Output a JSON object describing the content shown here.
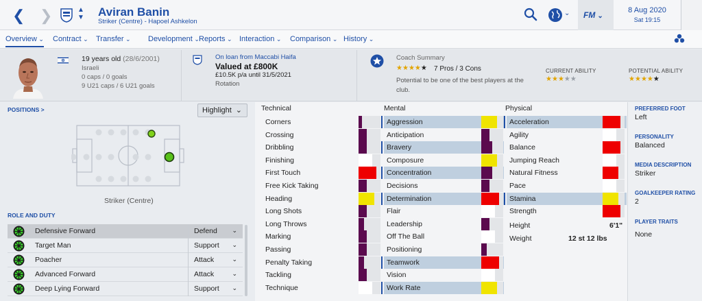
{
  "header": {
    "player_name": "Aviran Banin",
    "player_sub": "Striker (Centre) - Hapoel Ashkelon",
    "fm_label": "FM",
    "date": "8 Aug 2020",
    "time": "Sat 19:15"
  },
  "menu": [
    {
      "label": "Overview",
      "active": true
    },
    {
      "label": "Contract"
    },
    {
      "label": "Transfer"
    },
    {
      "label": "Development"
    },
    {
      "label": "Reports"
    },
    {
      "label": "Interaction"
    },
    {
      "label": "Comparison"
    },
    {
      "label": "History"
    }
  ],
  "bio": {
    "age": "19 years old",
    "dob": "(28/6/2001)",
    "nationality": "Israeli",
    "caps": "0 caps / 0 goals",
    "u21": "9 U21 caps / 6 U21 goals"
  },
  "contract": {
    "loan_link": "On loan from Maccabi Haifa",
    "value": "Valued at £800K",
    "wage": "£10.5K p/a until 31/5/2021",
    "status": "Rotation"
  },
  "coach": {
    "title": "Coach Summary",
    "stars": 4,
    "pros_cons": "7 Pros / 3 Cons",
    "text": "Potential to be one of the best players at the club.",
    "current_label": "CURRENT ABILITY",
    "current_stars": 3,
    "potential_label": "POTENTIAL ABILITY",
    "potential_stars": 4
  },
  "positions": {
    "title": "POSITIONS >",
    "highlight": "Highlight",
    "position_name": "Striker (Centre)"
  },
  "roles": {
    "title": "ROLE AND DUTY",
    "items": [
      {
        "name": "Defensive Forward",
        "duty": "Defend",
        "selected": true
      },
      {
        "name": "Target Man",
        "duty": "Support"
      },
      {
        "name": "Poacher",
        "duty": "Attack"
      },
      {
        "name": "Advanced Forward",
        "duty": "Attack"
      },
      {
        "name": "Deep Lying Forward",
        "duty": "Support"
      }
    ]
  },
  "attributes": {
    "technical_title": "Technical",
    "mental_title": "Mental",
    "physical_title": "Physical",
    "technical": [
      {
        "name": "Corners",
        "value": 4,
        "color": "#5b0a4e"
      },
      {
        "name": "Crossing",
        "value": 9,
        "color": "#5b0a4e"
      },
      {
        "name": "Dribbling",
        "value": 9,
        "color": "#5b0a4e"
      },
      {
        "name": "Finishing",
        "value": 15,
        "color": "#ffffff"
      },
      {
        "name": "First Touch",
        "value": 20,
        "color": "#ee0000"
      },
      {
        "name": "Free Kick Taking",
        "value": 9,
        "color": "#5b0a4e"
      },
      {
        "name": "Heading",
        "value": 18,
        "color": "#f0e400"
      },
      {
        "name": "Long Shots",
        "value": 9,
        "color": "#5b0a4e"
      },
      {
        "name": "Long Throws",
        "value": 6,
        "color": "#5b0a4e"
      },
      {
        "name": "Marking",
        "value": 9,
        "color": "#5b0a4e"
      },
      {
        "name": "Passing",
        "value": 9,
        "color": "#5b0a4e"
      },
      {
        "name": "Penalty Taking",
        "value": 6,
        "color": "#5b0a4e"
      },
      {
        "name": "Tackling",
        "value": 9,
        "color": "#5b0a4e"
      },
      {
        "name": "Technique",
        "value": 15,
        "color": "#ffffff"
      }
    ],
    "mental": [
      {
        "name": "Aggression",
        "value": 18,
        "color": "#f0e400"
      },
      {
        "name": "Anticipation",
        "value": 9,
        "color": "#5b0a4e"
      },
      {
        "name": "Bravery",
        "value": 12,
        "color": "#5b0a4e"
      },
      {
        "name": "Composure",
        "value": 18,
        "color": "#f0e400"
      },
      {
        "name": "Concentration",
        "value": 12,
        "color": "#5b0a4e"
      },
      {
        "name": "Decisions",
        "value": 9,
        "color": "#5b0a4e"
      },
      {
        "name": "Determination",
        "value": 20,
        "color": "#ee0000"
      },
      {
        "name": "Flair",
        "value": 15,
        "color": "#ffffff"
      },
      {
        "name": "Leadership",
        "value": 9,
        "color": "#5b0a4e"
      },
      {
        "name": "Off The Ball",
        "value": 15,
        "color": "#ffffff"
      },
      {
        "name": "Positioning",
        "value": 6,
        "color": "#5b0a4e"
      },
      {
        "name": "Teamwork",
        "value": 20,
        "color": "#ee0000"
      },
      {
        "name": "Vision",
        "value": 15,
        "color": "#ffffff"
      },
      {
        "name": "Work Rate",
        "value": 18,
        "color": "#f0e400"
      }
    ],
    "physical": [
      {
        "name": "Acceleration",
        "value": 20,
        "color": "#ee0000"
      },
      {
        "name": "Agility",
        "value": 15,
        "color": "#ffffff"
      },
      {
        "name": "Balance",
        "value": 20,
        "color": "#ee0000"
      },
      {
        "name": "Jumping Reach",
        "value": 15,
        "color": "#ffffff"
      },
      {
        "name": "Natural Fitness",
        "value": 18,
        "color": "#ee0000"
      },
      {
        "name": "Pace",
        "value": 15,
        "color": "#ffffff"
      },
      {
        "name": "Stamina",
        "value": 18,
        "color": "#f0e400"
      },
      {
        "name": "Strength",
        "value": 20,
        "color": "#ee0000"
      }
    ],
    "highlighted": [
      "Aggression",
      "Bravery",
      "Concentration",
      "Determination",
      "Teamwork",
      "Work Rate",
      "Acceleration",
      "Stamina"
    ],
    "height_label": "Height",
    "height": "6'1\"",
    "weight_label": "Weight",
    "weight": "12 st 12 lbs"
  },
  "side_info": {
    "foot_label": "PREFERRED FOOT",
    "foot": "Left",
    "personality_label": "PERSONALITY",
    "personality": "Balanced",
    "media_label": "MEDIA DESCRIPTION",
    "media": "Striker",
    "gk_label": "GOALKEEPER RATING",
    "gk": "2",
    "traits_label": "PLAYER TRAITS",
    "traits": "None"
  }
}
